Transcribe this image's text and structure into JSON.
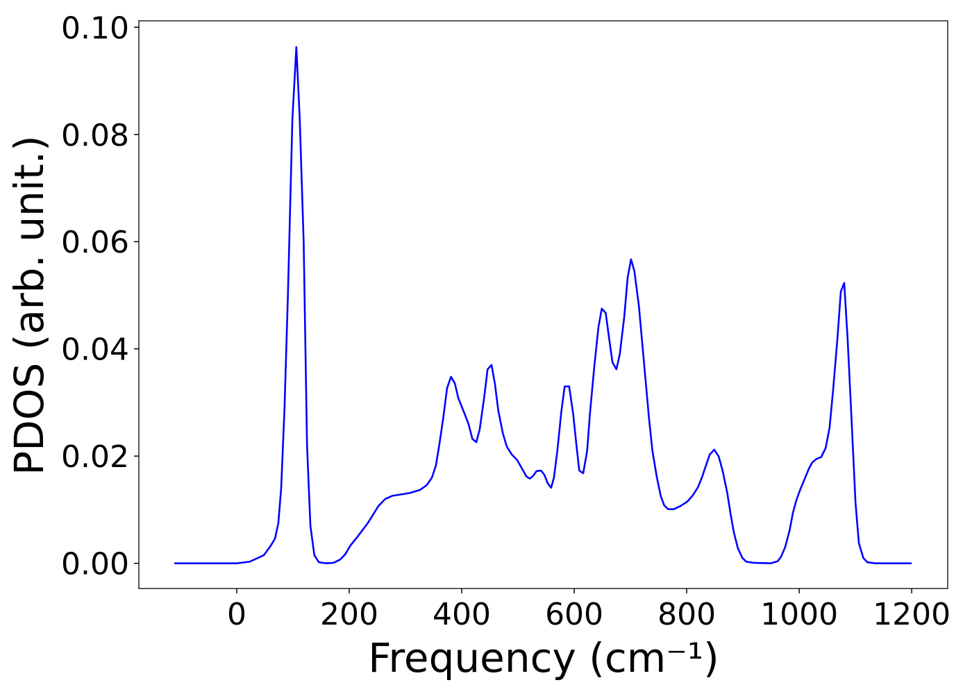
{
  "chart_data": {
    "type": "line",
    "xlabel": "Frequency (cm⁻¹)",
    "ylabel": "PDOS (arb. unit.)",
    "xlim": [
      -174,
      1264
    ],
    "ylim": [
      -0.0047,
      0.1012
    ],
    "xticks": [
      0,
      200,
      400,
      600,
      800,
      1000,
      1200
    ],
    "yticks": [
      {
        "value": 0,
        "label": "0.00"
      },
      {
        "value": 0.02,
        "label": "0.02"
      },
      {
        "value": 0.04,
        "label": "0.04"
      },
      {
        "value": 0.06,
        "label": "0.06"
      },
      {
        "value": 0.08,
        "label": "0.08"
      },
      {
        "value": 0.1,
        "label": "0.10"
      }
    ],
    "grid": false,
    "series": [
      {
        "color": "#0000ff",
        "x": [
          -111,
          0,
          23,
          48,
          60,
          68,
          74,
          79,
          85,
          91,
          99,
          106,
          112,
          119,
          125,
          131,
          138,
          146,
          159,
          172,
          184,
          193,
          202,
          215,
          233,
          252,
          264,
          277,
          307,
          326,
          338,
          347,
          354,
          360,
          367,
          374,
          381,
          388,
          394,
          404,
          412,
          419,
          426,
          432,
          440,
          446,
          453,
          459,
          465,
          473,
          480,
          489,
          499,
          507,
          515,
          521,
          527,
          533,
          541,
          547,
          553,
          559,
          564,
          570,
          577,
          583,
          591,
          598,
          604,
          609,
          616,
          623,
          628,
          636,
          643,
          649,
          656,
          662,
          668,
          675,
          681,
          689,
          695,
          701,
          707,
          715,
          721,
          727,
          733,
          739,
          747,
          754,
          760,
          767,
          777,
          789,
          801,
          811,
          820,
          827,
          835,
          841,
          849,
          857,
          864,
          872,
          878,
          884,
          891,
          899,
          906,
          919,
          949,
          962,
          968,
          975,
          983,
          989,
          995,
          1002,
          1010,
          1017,
          1023,
          1031,
          1039,
          1047,
          1054,
          1060,
          1068,
          1074,
          1080,
          1086,
          1093,
          1100,
          1106,
          1114,
          1121,
          1135,
          1200
        ],
        "values": [
          0,
          0,
          0.0003,
          0.0015,
          0.0032,
          0.0046,
          0.0075,
          0.014,
          0.029,
          0.05,
          0.083,
          0.0963,
          0.083,
          0.06,
          0.022,
          0.007,
          0.0015,
          0.0002,
          0,
          0.0001,
          0.0007,
          0.0017,
          0.0033,
          0.005,
          0.0075,
          0.0107,
          0.012,
          0.0126,
          0.0131,
          0.0137,
          0.0146,
          0.016,
          0.0182,
          0.022,
          0.027,
          0.0327,
          0.0348,
          0.0335,
          0.0308,
          0.0282,
          0.026,
          0.0232,
          0.0226,
          0.025,
          0.031,
          0.0362,
          0.037,
          0.0335,
          0.0285,
          0.0243,
          0.0218,
          0.0203,
          0.0192,
          0.0177,
          0.0162,
          0.0158,
          0.0163,
          0.0172,
          0.0173,
          0.0165,
          0.0149,
          0.0141,
          0.016,
          0.021,
          0.0282,
          0.033,
          0.033,
          0.028,
          0.022,
          0.0173,
          0.0168,
          0.021,
          0.028,
          0.037,
          0.044,
          0.0475,
          0.0467,
          0.042,
          0.0375,
          0.0362,
          0.039,
          0.046,
          0.0533,
          0.0567,
          0.0545,
          0.048,
          0.041,
          0.034,
          0.027,
          0.021,
          0.016,
          0.0125,
          0.0108,
          0.0101,
          0.0101,
          0.0107,
          0.0115,
          0.0127,
          0.0142,
          0.016,
          0.0185,
          0.0203,
          0.0212,
          0.0199,
          0.0172,
          0.0132,
          0.0092,
          0.0057,
          0.0028,
          0.001,
          0.0003,
          0.0001,
          0,
          0.0004,
          0.0013,
          0.003,
          0.0062,
          0.0095,
          0.0118,
          0.0138,
          0.0158,
          0.0176,
          0.0188,
          0.0195,
          0.0198,
          0.0215,
          0.0253,
          0.032,
          0.042,
          0.0507,
          0.0523,
          0.042,
          0.027,
          0.0115,
          0.0038,
          0.001,
          0.0002,
          0,
          0
        ]
      }
    ]
  }
}
